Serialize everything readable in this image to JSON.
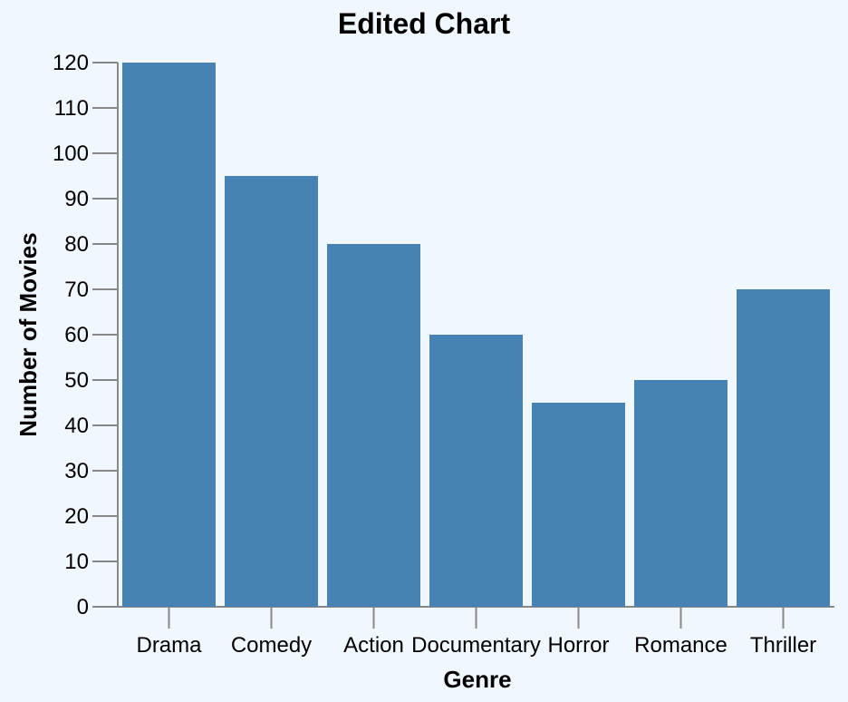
{
  "chart_data": {
    "type": "bar",
    "title": "Edited Chart",
    "xlabel": "Genre",
    "ylabel": "Number of Movies",
    "categories": [
      "Drama",
      "Comedy",
      "Action",
      "Documentary",
      "Horror",
      "Romance",
      "Thriller"
    ],
    "values": [
      120,
      95,
      80,
      60,
      45,
      50,
      70
    ],
    "ylim": [
      0,
      120
    ],
    "yticks": [
      0,
      10,
      20,
      30,
      40,
      50,
      60,
      70,
      80,
      90,
      100,
      110,
      120
    ],
    "grid": false,
    "bar_color": "#4682b4",
    "background_color": "#f0f7ff"
  }
}
